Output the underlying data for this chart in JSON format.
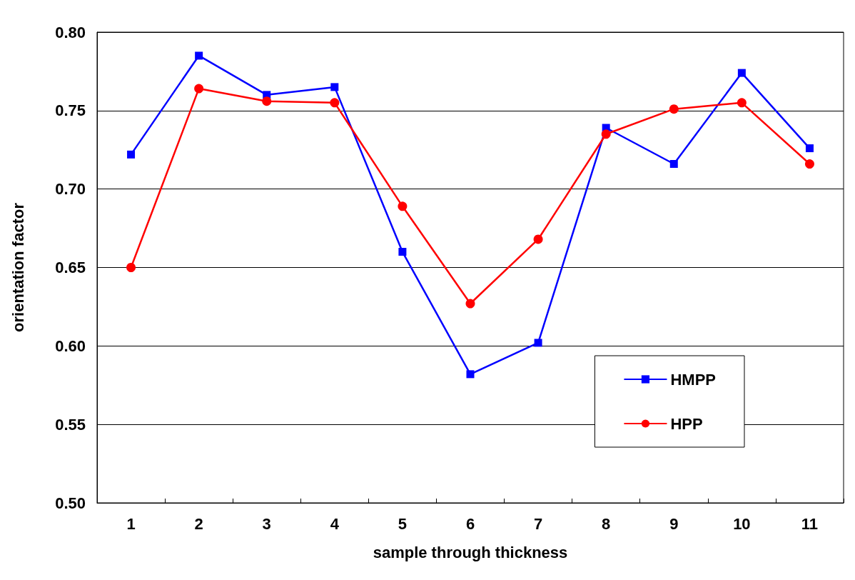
{
  "chart_data": {
    "type": "line",
    "xlabel": "sample through thickness",
    "ylabel": "orientation factor",
    "categories": [
      "1",
      "2",
      "3",
      "4",
      "5",
      "6",
      "7",
      "8",
      "9",
      "10",
      "11"
    ],
    "series": [
      {
        "name": "HMPP",
        "color": "#0000ff",
        "marker": "square",
        "values": [
          0.722,
          0.785,
          0.76,
          0.765,
          0.66,
          0.582,
          0.602,
          0.739,
          0.716,
          0.774,
          0.726
        ]
      },
      {
        "name": "HPP",
        "color": "#ff0000",
        "marker": "circle",
        "values": [
          0.65,
          0.764,
          0.756,
          0.755,
          0.689,
          0.627,
          0.668,
          0.735,
          0.751,
          0.755,
          0.716
        ]
      }
    ],
    "ylim": [
      0.5,
      0.8
    ],
    "yticks": [
      {
        "value": 0.5,
        "label": "0.50"
      },
      {
        "value": 0.55,
        "label": "0.55"
      },
      {
        "value": 0.6,
        "label": "0.60"
      },
      {
        "value": 0.65,
        "label": "0.65"
      },
      {
        "value": 0.7,
        "label": "0.70"
      },
      {
        "value": 0.75,
        "label": "0.75"
      },
      {
        "value": 0.8,
        "label": "0.80"
      }
    ],
    "grid": "y",
    "legend": "bottom right",
    "line_style": "solid"
  }
}
